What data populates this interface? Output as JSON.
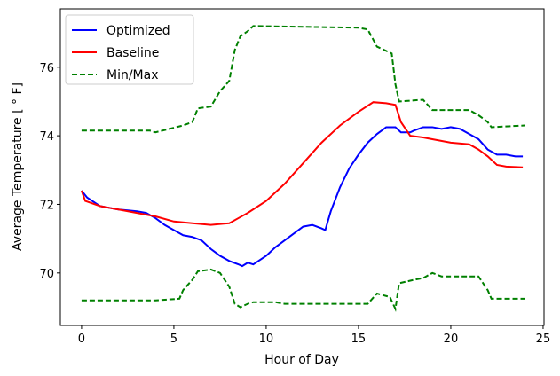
{
  "chart_data": {
    "type": "line",
    "title": "",
    "xlabel": "Hour of Day",
    "ylabel": "Average Temperature [ ° F]",
    "xlim": [
      -1.15,
      25.05
    ],
    "ylim": [
      68.47,
      77.7
    ],
    "xticks": [
      0,
      5,
      10,
      15,
      20,
      25
    ],
    "yticks": [
      70,
      72,
      74,
      76
    ],
    "grid": false,
    "legend_position": "top-left",
    "series": [
      {
        "name": "Optimized",
        "color": "#0000ff",
        "style": "solid",
        "x": [
          0,
          0.3,
          1,
          2,
          3,
          3.5,
          4,
          4.5,
          5,
          5.5,
          6,
          6.5,
          7,
          7.5,
          8,
          8.5,
          8.7,
          9,
          9.3,
          10,
          10.5,
          11,
          11.5,
          12,
          12.5,
          13,
          13.2,
          13.5,
          14,
          14.5,
          15,
          15.5,
          16,
          16.5,
          17,
          17.3,
          17.8,
          18,
          18.5,
          19,
          19.5,
          20,
          20.5,
          21,
          21.5,
          22,
          22.5,
          23,
          23.5,
          23.9
        ],
        "y": [
          72.4,
          72.2,
          71.95,
          71.85,
          71.8,
          71.75,
          71.6,
          71.4,
          71.25,
          71.1,
          71.05,
          70.95,
          70.7,
          70.5,
          70.35,
          70.25,
          70.2,
          70.3,
          70.25,
          70.5,
          70.75,
          70.95,
          71.15,
          71.35,
          71.4,
          71.3,
          71.25,
          71.8,
          72.5,
          73.05,
          73.45,
          73.8,
          74.05,
          74.25,
          74.25,
          74.1,
          74.1,
          74.15,
          74.25,
          74.25,
          74.2,
          74.25,
          74.2,
          74.05,
          73.9,
          73.6,
          73.45,
          73.45,
          73.4,
          73.4
        ]
      },
      {
        "name": "Baseline",
        "color": "#ff0000",
        "style": "solid",
        "x": [
          0,
          0.2,
          1,
          2,
          3,
          4,
          5,
          6,
          7,
          8,
          8.5,
          9,
          10,
          11,
          12,
          13,
          14,
          15,
          15.8,
          16.5,
          17,
          17.3,
          17.8,
          18.5,
          19,
          20,
          21,
          21.5,
          22,
          22.5,
          23,
          23.9
        ],
        "y": [
          72.4,
          72.1,
          71.95,
          71.85,
          71.75,
          71.65,
          71.5,
          71.45,
          71.4,
          71.45,
          71.6,
          71.75,
          72.1,
          72.6,
          73.2,
          73.8,
          74.3,
          74.7,
          74.98,
          74.95,
          74.9,
          74.4,
          74.0,
          73.95,
          73.9,
          73.8,
          73.75,
          73.6,
          73.4,
          73.15,
          73.1,
          73.08
        ]
      },
      {
        "name": "Min/Max",
        "color": "#008000",
        "style": "dashed",
        "x": [
          0,
          3.7,
          4,
          5.5,
          6,
          6.3,
          7,
          7.5,
          8,
          8.3,
          8.6,
          9,
          9.3,
          15,
          15.5,
          16,
          16.8,
          17,
          17.2,
          18.5,
          19,
          21,
          21.5,
          22,
          22.2,
          24
        ],
        "y": [
          74.15,
          74.15,
          74.1,
          74.3,
          74.4,
          74.8,
          74.85,
          75.3,
          75.6,
          76.5,
          76.9,
          77.05,
          77.2,
          77.15,
          77.1,
          76.6,
          76.4,
          75.5,
          75.0,
          75.05,
          74.75,
          74.75,
          74.6,
          74.4,
          74.25,
          74.3
        ]
      },
      {
        "name": "Min",
        "color": "#008000",
        "style": "dashed",
        "legend": false,
        "x": [
          0,
          4,
          5.3,
          5.5,
          6,
          6.3,
          7,
          7.5,
          8,
          8.3,
          8.6,
          9,
          9.3,
          10.5,
          11,
          15.5,
          16,
          16.7,
          17,
          17.2,
          18,
          18.5,
          19,
          19.5,
          21.5,
          22,
          22.2,
          24
        ],
        "y": [
          69.2,
          69.2,
          69.25,
          69.5,
          69.8,
          70.05,
          70.1,
          70.0,
          69.6,
          69.1,
          69.0,
          69.1,
          69.15,
          69.15,
          69.1,
          69.1,
          69.4,
          69.3,
          68.95,
          69.7,
          69.8,
          69.85,
          70.0,
          69.9,
          69.9,
          69.5,
          69.25,
          69.25
        ]
      }
    ]
  }
}
